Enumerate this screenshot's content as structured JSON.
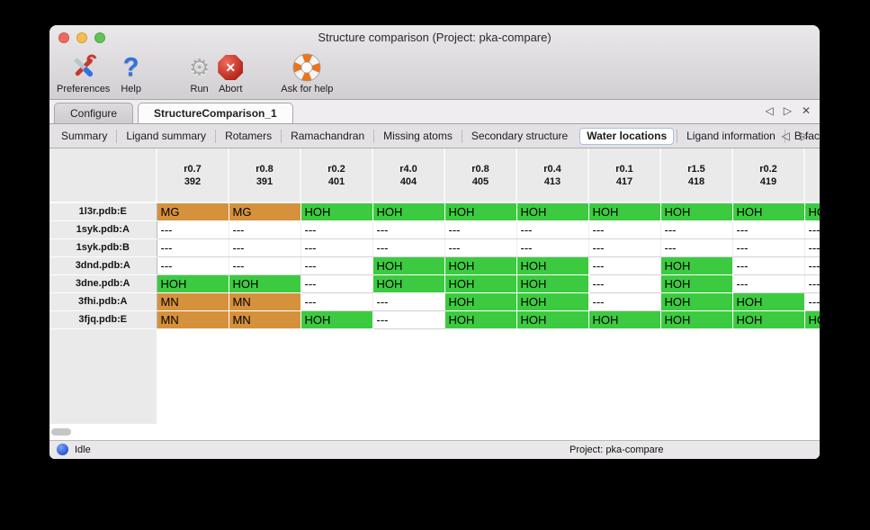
{
  "window": {
    "title": "Structure comparison (Project: pka-compare)"
  },
  "toolbar": {
    "items": [
      {
        "name": "preferences",
        "label": "Preferences"
      },
      {
        "name": "help",
        "label": "Help"
      },
      {
        "name": "run",
        "label": "Run"
      },
      {
        "name": "abort",
        "label": "Abort"
      },
      {
        "name": "ask-for-help",
        "label": "Ask for help"
      }
    ]
  },
  "main_tabs": {
    "items": [
      {
        "label": "Configure",
        "selected": false
      },
      {
        "label": "StructureComparison_1",
        "selected": true
      }
    ],
    "nav": {
      "prev": "◁",
      "next": "▷",
      "close": "✕"
    }
  },
  "sub_tabs": {
    "items": [
      "Summary",
      "Ligand summary",
      "Rotamers",
      "Ramachandran",
      "Missing atoms",
      "Secondary structure",
      "Water locations",
      "Ligand information",
      "B-factors"
    ],
    "selected_index": 6,
    "nav": {
      "prev": "◁",
      "next": "▷"
    }
  },
  "table": {
    "columns": [
      [
        "r0.7",
        "392"
      ],
      [
        "r0.8",
        "391"
      ],
      [
        "r0.2",
        "401"
      ],
      [
        "r4.0",
        "404"
      ],
      [
        "r0.8",
        "405"
      ],
      [
        "r0.4",
        "413"
      ],
      [
        "r0.1",
        "417"
      ],
      [
        "r1.5",
        "418"
      ],
      [
        "r0.2",
        "419"
      ],
      [
        "",
        ""
      ]
    ],
    "rows": [
      {
        "label": "1l3r.pdb:E",
        "cells": [
          [
            "MG",
            "orange"
          ],
          [
            "MG",
            "orange"
          ],
          [
            "HOH",
            "green"
          ],
          [
            "HOH",
            "green"
          ],
          [
            "HOH",
            "green"
          ],
          [
            "HOH",
            "green"
          ],
          [
            "HOH",
            "green"
          ],
          [
            "HOH",
            "green"
          ],
          [
            "HOH",
            "green"
          ],
          [
            "HOH",
            "green"
          ]
        ]
      },
      {
        "label": "1syk.pdb:A",
        "cells": [
          [
            "---",
            ""
          ],
          [
            "---",
            ""
          ],
          [
            "---",
            ""
          ],
          [
            "---",
            ""
          ],
          [
            "---",
            ""
          ],
          [
            "---",
            ""
          ],
          [
            "---",
            ""
          ],
          [
            "---",
            ""
          ],
          [
            "---",
            ""
          ],
          [
            "---",
            ""
          ]
        ]
      },
      {
        "label": "1syk.pdb:B",
        "cells": [
          [
            "---",
            ""
          ],
          [
            "---",
            ""
          ],
          [
            "---",
            ""
          ],
          [
            "---",
            ""
          ],
          [
            "---",
            ""
          ],
          [
            "---",
            ""
          ],
          [
            "---",
            ""
          ],
          [
            "---",
            ""
          ],
          [
            "---",
            ""
          ],
          [
            "---",
            ""
          ]
        ]
      },
      {
        "label": "3dnd.pdb:A",
        "cells": [
          [
            "---",
            ""
          ],
          [
            "---",
            ""
          ],
          [
            "---",
            ""
          ],
          [
            "HOH",
            "green"
          ],
          [
            "HOH",
            "green"
          ],
          [
            "HOH",
            "green"
          ],
          [
            "---",
            ""
          ],
          [
            "HOH",
            "green"
          ],
          [
            "---",
            ""
          ],
          [
            "---",
            ""
          ]
        ]
      },
      {
        "label": "3dne.pdb:A",
        "cells": [
          [
            "HOH",
            "green"
          ],
          [
            "HOH",
            "green"
          ],
          [
            "---",
            ""
          ],
          [
            "HOH",
            "green"
          ],
          [
            "HOH",
            "green"
          ],
          [
            "HOH",
            "green"
          ],
          [
            "---",
            ""
          ],
          [
            "HOH",
            "green"
          ],
          [
            "---",
            ""
          ],
          [
            "---",
            ""
          ]
        ]
      },
      {
        "label": "3fhi.pdb:A",
        "cells": [
          [
            "MN",
            "orange"
          ],
          [
            "MN",
            "orange"
          ],
          [
            "---",
            ""
          ],
          [
            "---",
            ""
          ],
          [
            "HOH",
            "green"
          ],
          [
            "HOH",
            "green"
          ],
          [
            "---",
            ""
          ],
          [
            "HOH",
            "green"
          ],
          [
            "HOH",
            "green"
          ],
          [
            "---",
            ""
          ]
        ]
      },
      {
        "label": "3fjq.pdb:E",
        "cells": [
          [
            "MN",
            "orange"
          ],
          [
            "MN",
            "orange"
          ],
          [
            "HOH",
            "green"
          ],
          [
            "---",
            ""
          ],
          [
            "HOH",
            "green"
          ],
          [
            "HOH",
            "green"
          ],
          [
            "HOH",
            "green"
          ],
          [
            "HOH",
            "green"
          ],
          [
            "HOH",
            "green"
          ],
          [
            "HOH",
            "green"
          ]
        ]
      }
    ]
  },
  "status_bar": {
    "status": "Idle",
    "project": "Project: pka-compare"
  },
  "icons": {
    "abort_cross": "✕",
    "run_gear": "⚙",
    "help_question": "?"
  },
  "colors": {
    "cell_green": "#3CCB40",
    "cell_orange": "#D6913C",
    "traffic_red": "#EE6A5F",
    "traffic_yellow": "#F5BD4F",
    "traffic_green": "#61C354",
    "status_dot_blue": "#2053D8",
    "selected_tab_border": "#A9C2DA"
  }
}
